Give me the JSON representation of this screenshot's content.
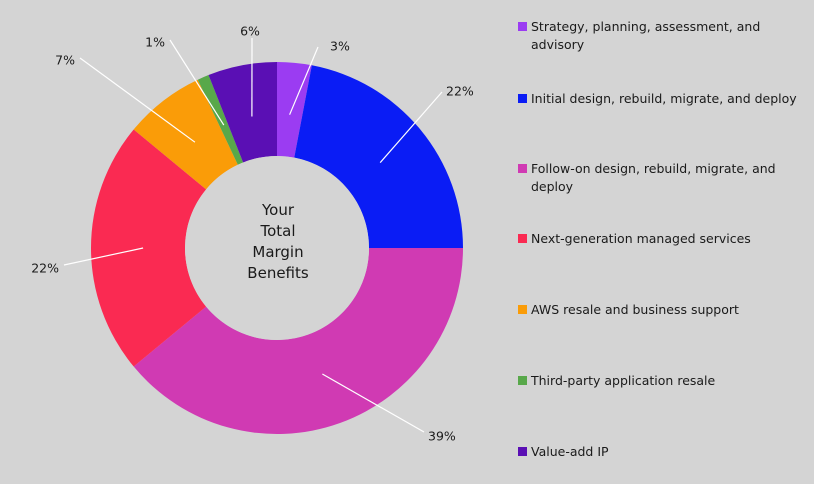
{
  "chart_data": {
    "type": "pie",
    "center_text": [
      "Your",
      "Total",
      "Margin",
      "Benefits"
    ],
    "slices": [
      {
        "label": "Strategy, planning, assessment, and advisory",
        "value": 3,
        "display": "3%",
        "color": "#9b3cf2"
      },
      {
        "label": "Initial design, rebuild, migrate, and deploy",
        "value": 22,
        "display": "22%",
        "color": "#0a1cf5"
      },
      {
        "label": "Follow-on design, rebuild, migrate, and deploy",
        "value": 39,
        "display": "39%",
        "color": "#d03ab3"
      },
      {
        "label": "Next-generation managed services",
        "value": 22,
        "display": "22%",
        "color": "#fa2a52"
      },
      {
        "label": "AWS resale and business support",
        "value": 7,
        "display": "7%",
        "color": "#fa9c08"
      },
      {
        "label": "Third-party application resale",
        "value": 1,
        "display": "1%",
        "color": "#58a84a"
      },
      {
        "label": "Value-add IP",
        "value": 6,
        "display": "6%",
        "color": "#5a0fb4"
      }
    ],
    "legend_position": "right"
  }
}
